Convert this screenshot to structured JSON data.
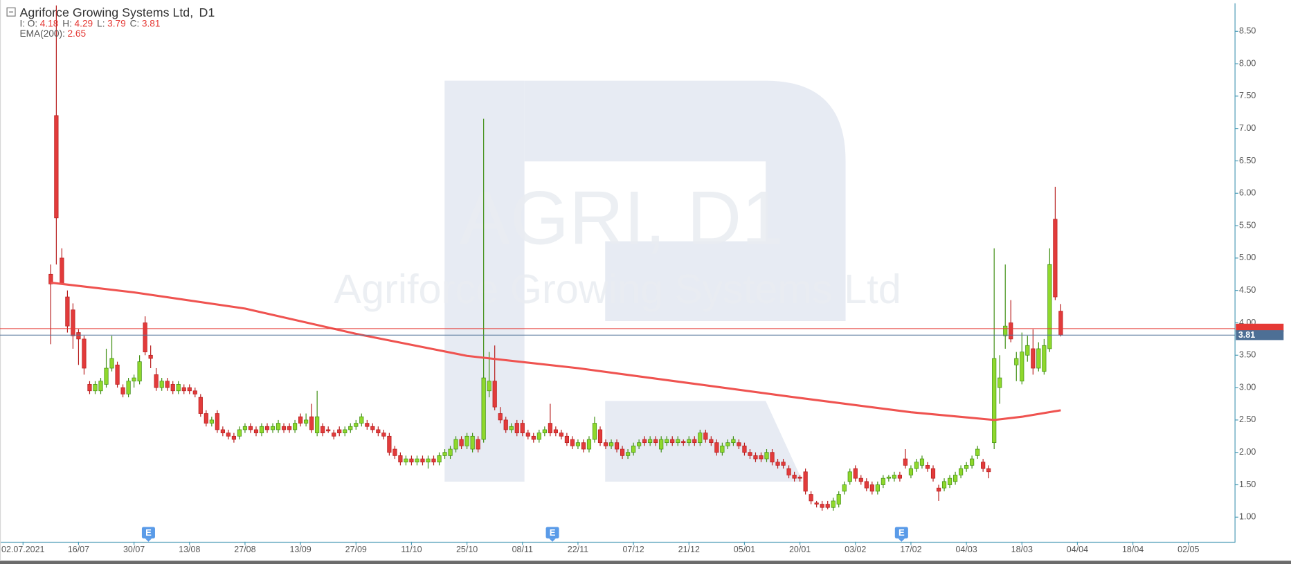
{
  "chart_data": {
    "type": "candlestick",
    "title": "Agriforce Growing Systems Ltd,",
    "timeframe": "D1",
    "interval_label": "I:",
    "ohlc_labels": [
      "O:",
      "H:",
      "L:",
      "C:"
    ],
    "watermark": {
      "symbol": "AGRI, D1",
      "name": "Agriforce Growing Systems Ltd"
    },
    "up_color": "#8fd82c",
    "down_color": "#e23b3b",
    "grid": false,
    "xlim": [
      -4.15,
      218.4
    ],
    "ylim": [
      0.62,
      8.92
    ],
    "xticks": [
      {
        "value": 0,
        "label": "02.07.2021"
      },
      {
        "value": 10,
        "label": "16/07"
      },
      {
        "value": 20,
        "label": "30/07"
      },
      {
        "value": 30,
        "label": "13/08"
      },
      {
        "value": 40,
        "label": "27/08"
      },
      {
        "value": 50,
        "label": "13/09"
      },
      {
        "value": 60,
        "label": "27/09"
      },
      {
        "value": 70,
        "label": "11/10"
      },
      {
        "value": 80,
        "label": "25/10"
      },
      {
        "value": 90,
        "label": "08/11"
      },
      {
        "value": 100,
        "label": "22/11"
      },
      {
        "value": 110,
        "label": "07/12"
      },
      {
        "value": 120,
        "label": "21/12"
      },
      {
        "value": 130,
        "label": "05/01"
      },
      {
        "value": 140,
        "label": "20/01"
      },
      {
        "value": 150,
        "label": "03/02"
      },
      {
        "value": 160,
        "label": "17/02"
      },
      {
        "value": 170,
        "label": "04/03"
      },
      {
        "value": 180,
        "label": "18/03"
      },
      {
        "value": 190,
        "label": "04/04"
      },
      {
        "value": 200,
        "label": "18/04"
      },
      {
        "value": 210,
        "label": "02/05"
      }
    ],
    "yticks": [
      {
        "value": 1,
        "label": "1.00"
      },
      {
        "value": 1.5,
        "label": "1.50"
      },
      {
        "value": 2,
        "label": "2.00"
      },
      {
        "value": 2.5,
        "label": "2.50"
      },
      {
        "value": 3,
        "label": "3.00"
      },
      {
        "value": 3.5,
        "label": "3.50"
      },
      {
        "value": 4,
        "label": "4.00"
      },
      {
        "value": 4.5,
        "label": "4.50"
      },
      {
        "value": 5,
        "label": "5.00"
      },
      {
        "value": 5.5,
        "label": "5.50"
      },
      {
        "value": 6,
        "label": "6.00"
      },
      {
        "value": 6.5,
        "label": "6.50"
      },
      {
        "value": 7,
        "label": "7.00"
      },
      {
        "value": 7.5,
        "label": "7.50"
      },
      {
        "value": 8,
        "label": "8.00"
      },
      {
        "value": 8.5,
        "label": "8.50"
      }
    ],
    "candles": [
      [
        5,
        4.75,
        4.9,
        3.67,
        4.6
      ],
      [
        6,
        7.2,
        8.9,
        4.9,
        5.62
      ],
      [
        7,
        5.0,
        5.15,
        4.6,
        4.6
      ],
      [
        8,
        4.4,
        4.5,
        3.85,
        3.95
      ],
      [
        9,
        4.2,
        4.3,
        3.6,
        3.8
      ],
      [
        10,
        3.85,
        3.9,
        3.35,
        3.75
      ],
      [
        11,
        3.75,
        3.8,
        3.2,
        3.3
      ],
      [
        12,
        3.05,
        3.1,
        2.9,
        2.95
      ],
      [
        13,
        2.95,
        3.1,
        2.9,
        3.05
      ],
      [
        14,
        2.95,
        3.15,
        2.9,
        3.1
      ],
      [
        15,
        3.05,
        3.6,
        3.0,
        3.3
      ],
      [
        16,
        3.3,
        3.8,
        3.25,
        3.45
      ],
      [
        17,
        3.35,
        3.4,
        3.0,
        3.05
      ],
      [
        18,
        3.0,
        3.05,
        2.85,
        2.9
      ],
      [
        19,
        2.9,
        3.15,
        2.85,
        3.1
      ],
      [
        20,
        3.1,
        3.2,
        3.0,
        3.15
      ],
      [
        21,
        3.1,
        3.5,
        3.05,
        3.4
      ],
      [
        22,
        4.0,
        4.1,
        3.5,
        3.55
      ],
      [
        23,
        3.5,
        3.65,
        3.3,
        3.45
      ],
      [
        24,
        3.2,
        3.3,
        2.95,
        3.0
      ],
      [
        25,
        3.0,
        3.15,
        2.95,
        3.1
      ],
      [
        26,
        3.1,
        3.15,
        2.95,
        3.0
      ],
      [
        27,
        3.05,
        3.1,
        2.9,
        2.95
      ],
      [
        28,
        2.95,
        3.1,
        2.9,
        3.05
      ],
      [
        29,
        3.0,
        3.05,
        2.9,
        2.95
      ],
      [
        30,
        3.0,
        3.05,
        2.9,
        2.95
      ],
      [
        31,
        2.95,
        3.0,
        2.85,
        2.9
      ],
      [
        32,
        2.85,
        2.9,
        2.55,
        2.6
      ],
      [
        33,
        2.6,
        2.65,
        2.4,
        2.45
      ],
      [
        34,
        2.45,
        2.55,
        2.4,
        2.5
      ],
      [
        35,
        2.6,
        2.65,
        2.3,
        2.35
      ],
      [
        36,
        2.35,
        2.4,
        2.25,
        2.3
      ],
      [
        37,
        2.3,
        2.35,
        2.2,
        2.25
      ],
      [
        38,
        2.25,
        2.3,
        2.15,
        2.2
      ],
      [
        39,
        2.25,
        2.4,
        2.2,
        2.35
      ],
      [
        40,
        2.35,
        2.45,
        2.3,
        2.4
      ],
      [
        41,
        2.4,
        2.45,
        2.3,
        2.35
      ],
      [
        42,
        2.35,
        2.4,
        2.25,
        2.3
      ],
      [
        43,
        2.3,
        2.45,
        2.25,
        2.4
      ],
      [
        44,
        2.4,
        2.45,
        2.3,
        2.35
      ],
      [
        45,
        2.35,
        2.45,
        2.3,
        2.4
      ],
      [
        46,
        2.35,
        2.5,
        2.3,
        2.45
      ],
      [
        47,
        2.4,
        2.45,
        2.3,
        2.35
      ],
      [
        48,
        2.4,
        2.45,
        2.3,
        2.35
      ],
      [
        49,
        2.35,
        2.5,
        2.3,
        2.45
      ],
      [
        50,
        2.55,
        2.6,
        2.4,
        2.45
      ],
      [
        51,
        2.45,
        2.6,
        2.4,
        2.5
      ],
      [
        52,
        2.55,
        2.75,
        2.3,
        2.35
      ],
      [
        53,
        2.3,
        2.95,
        2.25,
        2.55
      ],
      [
        54,
        2.4,
        2.45,
        2.25,
        2.3
      ],
      [
        55,
        2.35,
        2.4,
        2.3,
        2.33
      ],
      [
        56,
        2.3,
        2.35,
        2.2,
        2.25
      ],
      [
        57,
        2.35,
        2.4,
        2.25,
        2.3
      ],
      [
        58,
        2.3,
        2.4,
        2.25,
        2.35
      ],
      [
        59,
        2.35,
        2.45,
        2.3,
        2.4
      ],
      [
        60,
        2.4,
        2.5,
        2.35,
        2.45
      ],
      [
        61,
        2.45,
        2.6,
        2.4,
        2.55
      ],
      [
        62,
        2.45,
        2.5,
        2.35,
        2.4
      ],
      [
        63,
        2.4,
        2.45,
        2.3,
        2.35
      ],
      [
        64,
        2.35,
        2.4,
        2.25,
        2.3
      ],
      [
        65,
        2.3,
        2.35,
        2.2,
        2.25
      ],
      [
        66,
        2.25,
        2.3,
        1.95,
        2.0
      ],
      [
        67,
        2.05,
        2.1,
        1.9,
        1.95
      ],
      [
        68,
        1.95,
        2.0,
        1.8,
        1.85
      ],
      [
        69,
        1.85,
        1.95,
        1.8,
        1.9
      ],
      [
        70,
        1.9,
        1.95,
        1.8,
        1.85
      ],
      [
        71,
        1.85,
        1.95,
        1.8,
        1.9
      ],
      [
        72,
        1.9,
        1.95,
        1.8,
        1.85
      ],
      [
        73,
        1.85,
        1.95,
        1.75,
        1.9
      ],
      [
        74,
        1.9,
        1.95,
        1.8,
        1.85
      ],
      [
        75,
        1.85,
        2.0,
        1.8,
        1.95
      ],
      [
        76,
        1.95,
        2.05,
        1.9,
        2.0
      ],
      [
        77,
        1.95,
        2.1,
        1.9,
        2.05
      ],
      [
        78,
        2.05,
        2.25,
        2.0,
        2.2
      ],
      [
        79,
        2.2,
        2.25,
        2.05,
        2.1
      ],
      [
        80,
        2.1,
        2.3,
        2.05,
        2.25
      ],
      [
        81,
        2.05,
        2.3,
        2.0,
        2.25
      ],
      [
        82,
        2.2,
        2.25,
        2.0,
        2.05
      ],
      [
        83,
        2.2,
        7.15,
        2.15,
        3.15
      ],
      [
        84,
        2.95,
        3.55,
        2.85,
        3.1
      ],
      [
        85,
        3.1,
        3.65,
        2.65,
        2.7
      ],
      [
        86,
        2.6,
        2.7,
        2.45,
        2.5
      ],
      [
        87,
        2.5,
        2.55,
        2.3,
        2.35
      ],
      [
        88,
        2.35,
        2.45,
        2.3,
        2.4
      ],
      [
        89,
        2.45,
        2.5,
        2.25,
        2.3
      ],
      [
        90,
        2.45,
        2.5,
        2.25,
        2.3
      ],
      [
        91,
        2.3,
        2.35,
        2.2,
        2.25
      ],
      [
        92,
        2.25,
        2.3,
        2.15,
        2.2
      ],
      [
        93,
        2.2,
        2.35,
        2.15,
        2.3
      ],
      [
        94,
        2.3,
        2.4,
        2.25,
        2.35
      ],
      [
        95,
        2.45,
        2.75,
        2.25,
        2.3
      ],
      [
        96,
        2.35,
        2.4,
        2.25,
        2.3
      ],
      [
        97,
        2.3,
        2.35,
        2.2,
        2.25
      ],
      [
        98,
        2.25,
        2.3,
        2.1,
        2.15
      ],
      [
        99,
        2.2,
        2.25,
        2.05,
        2.1
      ],
      [
        100,
        2.1,
        2.2,
        2.05,
        2.15
      ],
      [
        101,
        2.15,
        2.2,
        2.0,
        2.05
      ],
      [
        102,
        2.05,
        2.25,
        2.0,
        2.2
      ],
      [
        103,
        2.2,
        2.55,
        2.15,
        2.45
      ],
      [
        104,
        2.35,
        2.4,
        2.1,
        2.15
      ],
      [
        105,
        2.15,
        2.2,
        2.05,
        2.1
      ],
      [
        106,
        2.1,
        2.2,
        2.05,
        2.15
      ],
      [
        107,
        2.15,
        2.2,
        2.0,
        2.05
      ],
      [
        108,
        2.05,
        2.1,
        1.9,
        1.95
      ],
      [
        109,
        1.95,
        2.05,
        1.9,
        2.0
      ],
      [
        110,
        2.0,
        2.15,
        1.95,
        2.1
      ],
      [
        111,
        2.1,
        2.2,
        2.05,
        2.15
      ],
      [
        112,
        2.2,
        2.25,
        2.1,
        2.15
      ],
      [
        113,
        2.15,
        2.25,
        2.1,
        2.2
      ],
      [
        114,
        2.2,
        2.25,
        2.1,
        2.15
      ],
      [
        115,
        2.05,
        2.25,
        2.0,
        2.2
      ],
      [
        116,
        2.15,
        2.25,
        2.1,
        2.2
      ],
      [
        117,
        2.2,
        2.25,
        2.1,
        2.15
      ],
      [
        118,
        2.15,
        2.25,
        2.1,
        2.2
      ],
      [
        119,
        2.17,
        2.2,
        2.1,
        2.15
      ],
      [
        120,
        2.15,
        2.25,
        2.1,
        2.2
      ],
      [
        121,
        2.2,
        2.25,
        2.1,
        2.15
      ],
      [
        122,
        2.15,
        2.35,
        2.1,
        2.3
      ],
      [
        123,
        2.3,
        2.35,
        2.15,
        2.2
      ],
      [
        124,
        2.2,
        2.25,
        2.1,
        2.15
      ],
      [
        125,
        2.15,
        2.2,
        1.95,
        2.0
      ],
      [
        126,
        2.0,
        2.15,
        1.95,
        2.1
      ],
      [
        127,
        2.1,
        2.2,
        2.05,
        2.15
      ],
      [
        128,
        2.15,
        2.25,
        2.1,
        2.2
      ],
      [
        129,
        2.15,
        2.2,
        2.05,
        2.1
      ],
      [
        130,
        2.1,
        2.15,
        1.95,
        2.0
      ],
      [
        131,
        2.0,
        2.05,
        1.9,
        1.95
      ],
      [
        132,
        1.95,
        2.0,
        1.85,
        1.9
      ],
      [
        133,
        1.95,
        2.0,
        1.85,
        1.9
      ],
      [
        134,
        1.9,
        2.05,
        1.85,
        2.0
      ],
      [
        135,
        2.0,
        2.05,
        1.8,
        1.85
      ],
      [
        136,
        1.85,
        1.9,
        1.75,
        1.8
      ],
      [
        137,
        1.85,
        1.9,
        1.75,
        1.8
      ],
      [
        138,
        1.75,
        1.8,
        1.6,
        1.65
      ],
      [
        139,
        1.65,
        1.7,
        1.55,
        1.6
      ],
      [
        140,
        1.62,
        1.65,
        1.55,
        1.6
      ],
      [
        141,
        1.7,
        1.75,
        1.35,
        1.4
      ],
      [
        142,
        1.35,
        1.4,
        1.2,
        1.25
      ],
      [
        143,
        1.22,
        1.25,
        1.15,
        1.2
      ],
      [
        144,
        1.2,
        1.25,
        1.1,
        1.15
      ],
      [
        145,
        1.2,
        1.25,
        1.12,
        1.15
      ],
      [
        146,
        1.15,
        1.3,
        1.1,
        1.25
      ],
      [
        147,
        1.2,
        1.4,
        1.15,
        1.35
      ],
      [
        148,
        1.4,
        1.55,
        1.35,
        1.5
      ],
      [
        149,
        1.55,
        1.75,
        1.5,
        1.7
      ],
      [
        150,
        1.75,
        1.8,
        1.55,
        1.6
      ],
      [
        151,
        1.6,
        1.65,
        1.5,
        1.55
      ],
      [
        152,
        1.55,
        1.6,
        1.4,
        1.45
      ],
      [
        153,
        1.5,
        1.55,
        1.35,
        1.4
      ],
      [
        154,
        1.4,
        1.55,
        1.35,
        1.5
      ],
      [
        155,
        1.5,
        1.65,
        1.45,
        1.6
      ],
      [
        156,
        1.6,
        1.65,
        1.55,
        1.62
      ],
      [
        157,
        1.6,
        1.7,
        1.55,
        1.65
      ],
      [
        158,
        1.65,
        1.7,
        1.55,
        1.6
      ],
      [
        159,
        1.9,
        2.05,
        1.75,
        1.8
      ],
      [
        160,
        1.65,
        1.8,
        1.6,
        1.75
      ],
      [
        161,
        1.75,
        1.9,
        1.7,
        1.85
      ],
      [
        162,
        1.8,
        1.95,
        1.75,
        1.9
      ],
      [
        163,
        1.8,
        1.85,
        1.7,
        1.75
      ],
      [
        164,
        1.75,
        1.8,
        1.55,
        1.6
      ],
      [
        165,
        1.45,
        1.5,
        1.25,
        1.4
      ],
      [
        166,
        1.45,
        1.6,
        1.4,
        1.55
      ],
      [
        167,
        1.5,
        1.65,
        1.45,
        1.6
      ],
      [
        168,
        1.55,
        1.7,
        1.5,
        1.65
      ],
      [
        169,
        1.65,
        1.8,
        1.6,
        1.75
      ],
      [
        170,
        1.75,
        1.85,
        1.7,
        1.8
      ],
      [
        171,
        1.8,
        1.95,
        1.75,
        1.9
      ],
      [
        172,
        1.95,
        2.1,
        1.9,
        2.05
      ],
      [
        173,
        1.85,
        1.9,
        1.7,
        1.75
      ],
      [
        174,
        1.75,
        1.8,
        1.6,
        1.7
      ],
      [
        175,
        2.15,
        5.15,
        2.05,
        3.45
      ],
      [
        176,
        3.0,
        3.5,
        2.75,
        3.15
      ],
      [
        177,
        3.8,
        4.9,
        3.6,
        3.95
      ],
      [
        178,
        4.0,
        4.35,
        3.7,
        3.75
      ],
      [
        179,
        3.35,
        3.55,
        3.1,
        3.45
      ],
      [
        180,
        3.1,
        3.85,
        3.05,
        3.55
      ],
      [
        181,
        3.5,
        3.8,
        3.4,
        3.65
      ],
      [
        182,
        3.6,
        3.9,
        3.2,
        3.3
      ],
      [
        183,
        3.3,
        3.7,
        3.25,
        3.6
      ],
      [
        184,
        3.25,
        3.75,
        3.2,
        3.65
      ],
      [
        185,
        3.6,
        5.15,
        3.55,
        4.9
      ],
      [
        186,
        5.6,
        6.1,
        4.35,
        4.4
      ],
      [
        187,
        4.18,
        4.29,
        3.79,
        3.81
      ]
    ],
    "ema": {
      "name": "EMA(200):",
      "color": "#ef5350",
      "x": [
        5,
        20,
        40,
        60,
        80,
        100,
        120,
        140,
        160,
        175,
        180,
        187
      ],
      "values": [
        4.62,
        4.47,
        4.22,
        3.83,
        3.49,
        3.3,
        3.07,
        2.84,
        2.62,
        2.5,
        2.55,
        2.65
      ]
    },
    "ask_line": {
      "value": 3.91,
      "color": "#e53935"
    },
    "price_line_color": "#4d6f95",
    "events": [
      {
        "x": 22.6,
        "label": "E"
      },
      {
        "x": 95.4,
        "label": "E"
      },
      {
        "x": 158.3,
        "label": "E"
      }
    ]
  }
}
